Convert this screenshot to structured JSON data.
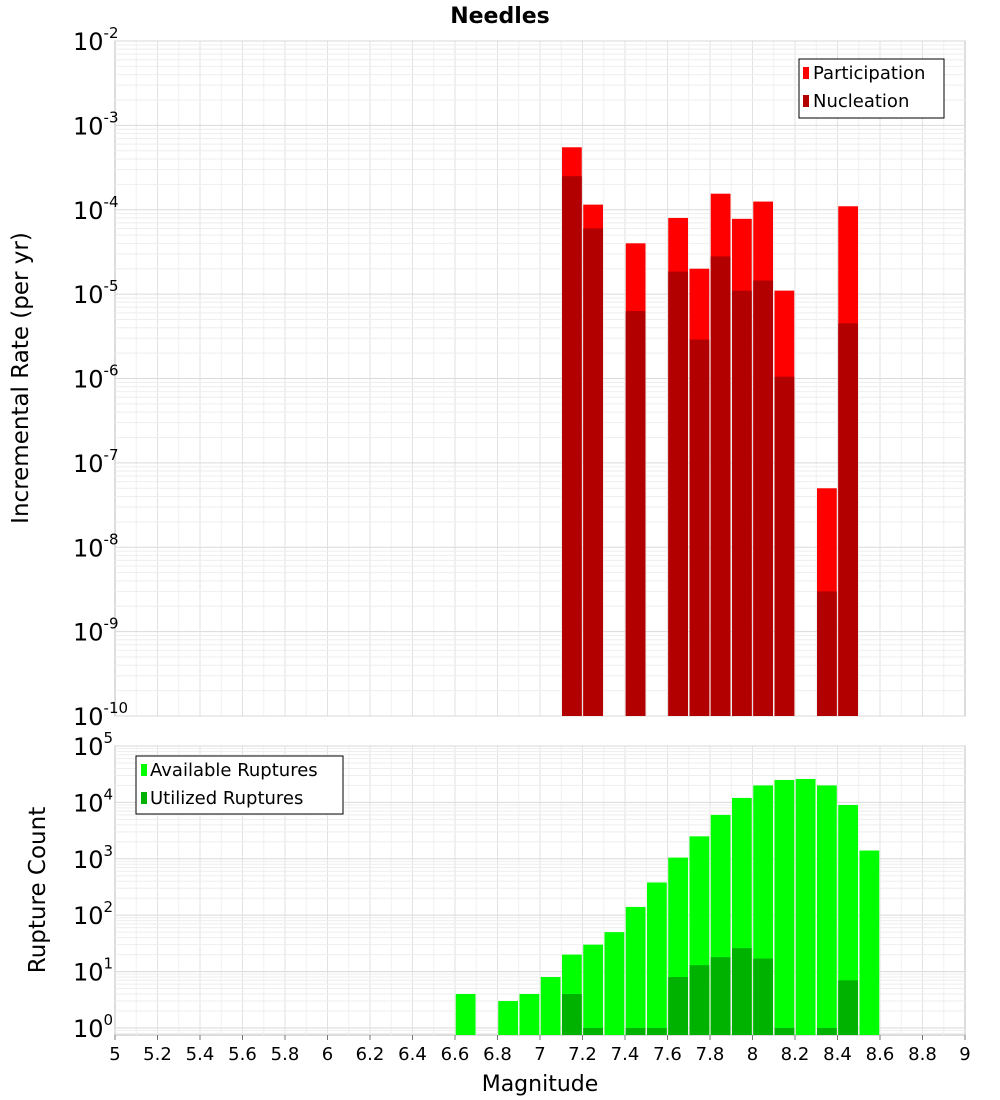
{
  "title": "Needles",
  "xlabel": "Magnitude",
  "x_ticks": [
    "5",
    "5.2",
    "5.4",
    "5.6",
    "5.8",
    "6",
    "6.2",
    "6.4",
    "6.6",
    "6.8",
    "7",
    "7.2",
    "7.4",
    "7.6",
    "7.8",
    "8",
    "8.2",
    "8.4",
    "8.6",
    "8.8",
    "9"
  ],
  "chart_data": [
    {
      "type": "bar",
      "ylabel": "Incremental Rate (per yr)",
      "yscale": "log",
      "ylim": [
        1e-10,
        0.01
      ],
      "xlim": [
        5,
        9
      ],
      "y_ticks": [
        {
          "base": "10",
          "exp": "-10"
        },
        {
          "base": "10",
          "exp": "-9"
        },
        {
          "base": "10",
          "exp": "-8"
        },
        {
          "base": "10",
          "exp": "-7"
        },
        {
          "base": "10",
          "exp": "-6"
        },
        {
          "base": "10",
          "exp": "-5"
        },
        {
          "base": "10",
          "exp": "-4"
        },
        {
          "base": "10",
          "exp": "-3"
        },
        {
          "base": "10",
          "exp": "-2"
        }
      ],
      "legend_position": "top-right",
      "grid": true,
      "x": [
        7.15,
        7.25,
        7.45,
        7.65,
        7.75,
        7.85,
        7.95,
        8.05,
        8.15,
        8.35,
        8.45
      ],
      "series": [
        {
          "name": "Participation",
          "color": "#ff0000",
          "values": [
            0.00055,
            0.000115,
            4e-05,
            8e-05,
            2e-05,
            0.000155,
            7.8e-05,
            0.000125,
            1.1e-05,
            5e-08,
            0.00011
          ]
        },
        {
          "name": "Nucleation",
          "color": "#b20000",
          "values": [
            0.00025,
            6e-05,
            6.3e-06,
            1.85e-05,
            2.9e-06,
            2.8e-05,
            1.1e-05,
            1.45e-05,
            1.05e-06,
            3e-09,
            4.5e-06
          ]
        }
      ]
    },
    {
      "type": "bar",
      "ylabel": "Rupture Count",
      "yscale": "log",
      "ylim": [
        0.75,
        100000
      ],
      "xlim": [
        5,
        9
      ],
      "y_ticks": [
        {
          "base": "10",
          "exp": "0"
        },
        {
          "base": "10",
          "exp": "1"
        },
        {
          "base": "10",
          "exp": "2"
        },
        {
          "base": "10",
          "exp": "3"
        },
        {
          "base": "10",
          "exp": "4"
        },
        {
          "base": "10",
          "exp": "5"
        }
      ],
      "legend_position": "top-left",
      "grid": true,
      "x": [
        6.65,
        6.85,
        6.95,
        7.05,
        7.15,
        7.25,
        7.35,
        7.45,
        7.55,
        7.65,
        7.75,
        7.85,
        7.95,
        8.05,
        8.15,
        8.25,
        8.35,
        8.45,
        8.55
      ],
      "series": [
        {
          "name": "Available Ruptures",
          "color": "#00ff00",
          "values": [
            4,
            3,
            4,
            8,
            20,
            30,
            50,
            140,
            380,
            1050,
            2500,
            6000,
            12000,
            20000,
            25000,
            26000,
            20000,
            9000,
            1400
          ]
        },
        {
          "name": "Utilized Ruptures",
          "color": "#00b200",
          "values": [
            0,
            0,
            0,
            0,
            4,
            1,
            0,
            1,
            1,
            8,
            13,
            18,
            26,
            17,
            1,
            0,
            1,
            7,
            0
          ]
        }
      ]
    }
  ]
}
